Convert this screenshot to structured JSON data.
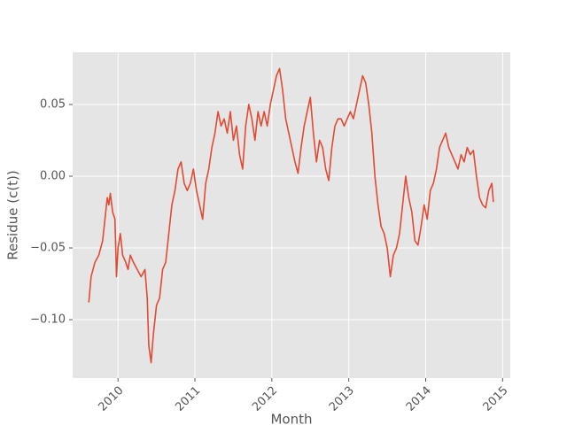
{
  "chart_data": {
    "type": "line",
    "xlabel": "Month",
    "ylabel": "Residue (c(t))",
    "color": "#e24a33",
    "grid": true,
    "xlim": [
      2009.41,
      2015.1
    ],
    "xticks": [
      2010,
      2011,
      2012,
      2013,
      2014,
      2015
    ],
    "ylim": [
      -0.1407,
      0.0864
    ],
    "yticks": [
      {
        "value": -0.1,
        "label": "−0.10"
      },
      {
        "value": -0.05,
        "label": "−0.05"
      },
      {
        "value": 0,
        "label": "0.00"
      },
      0.05
    ],
    "x": [
      2009.62,
      2009.65,
      2009.7,
      2009.75,
      2009.8,
      2009.83,
      2009.86,
      2009.88,
      2009.9,
      2009.93,
      2009.96,
      2009.98,
      2010.0,
      2010.03,
      2010.06,
      2010.1,
      2010.13,
      2010.16,
      2010.2,
      2010.25,
      2010.3,
      2010.35,
      2010.38,
      2010.4,
      2010.43,
      2010.46,
      2010.5,
      2010.54,
      2010.58,
      2010.62,
      2010.66,
      2010.7,
      2010.74,
      2010.78,
      2010.82,
      2010.86,
      2010.9,
      2010.94,
      2010.98,
      2011.02,
      2011.06,
      2011.1,
      2011.14,
      2011.18,
      2011.22,
      2011.26,
      2011.3,
      2011.34,
      2011.38,
      2011.42,
      2011.46,
      2011.5,
      2011.54,
      2011.58,
      2011.62,
      2011.66,
      2011.7,
      2011.74,
      2011.78,
      2011.82,
      2011.86,
      2011.9,
      2011.94,
      2011.98,
      2012.02,
      2012.06,
      2012.1,
      2012.14,
      2012.18,
      2012.22,
      2012.26,
      2012.3,
      2012.34,
      2012.38,
      2012.42,
      2012.46,
      2012.5,
      2012.54,
      2012.58,
      2012.62,
      2012.66,
      2012.7,
      2012.74,
      2012.78,
      2012.82,
      2012.86,
      2012.9,
      2012.94,
      2012.98,
      2013.02,
      2013.06,
      2013.1,
      2013.14,
      2013.18,
      2013.22,
      2013.26,
      2013.3,
      2013.34,
      2013.38,
      2013.42,
      2013.46,
      2013.5,
      2013.54,
      2013.58,
      2013.62,
      2013.66,
      2013.7,
      2013.74,
      2013.78,
      2013.82,
      2013.86,
      2013.9,
      2013.94,
      2013.98,
      2014.02,
      2014.06,
      2014.1,
      2014.14,
      2014.18,
      2014.22,
      2014.26,
      2014.3,
      2014.34,
      2014.38,
      2014.42,
      2014.46,
      2014.5,
      2014.54,
      2014.58,
      2014.62,
      2014.66,
      2014.7,
      2014.74,
      2014.78,
      2014.82,
      2014.86,
      2014.88
    ],
    "values": [
      -0.088,
      -0.07,
      -0.06,
      -0.055,
      -0.045,
      -0.03,
      -0.015,
      -0.02,
      -0.012,
      -0.025,
      -0.03,
      -0.07,
      -0.05,
      -0.04,
      -0.055,
      -0.06,
      -0.065,
      -0.055,
      -0.06,
      -0.065,
      -0.07,
      -0.065,
      -0.085,
      -0.118,
      -0.13,
      -0.11,
      -0.09,
      -0.085,
      -0.065,
      -0.06,
      -0.04,
      -0.02,
      -0.01,
      0.005,
      0.01,
      -0.005,
      -0.01,
      -0.005,
      0.005,
      -0.01,
      -0.02,
      -0.03,
      -0.005,
      0.005,
      0.02,
      0.03,
      0.045,
      0.035,
      0.04,
      0.03,
      0.045,
      0.025,
      0.035,
      0.015,
      0.005,
      0.035,
      0.05,
      0.04,
      0.025,
      0.045,
      0.035,
      0.045,
      0.035,
      0.05,
      0.06,
      0.07,
      0.075,
      0.06,
      0.04,
      0.03,
      0.02,
      0.01,
      0.002,
      0.02,
      0.035,
      0.045,
      0.055,
      0.03,
      0.01,
      0.025,
      0.02,
      0.005,
      -0.003,
      0.02,
      0.035,
      0.04,
      0.04,
      0.035,
      0.04,
      0.045,
      0.04,
      0.05,
      0.06,
      0.07,
      0.065,
      0.05,
      0.03,
      0.0,
      -0.02,
      -0.035,
      -0.04,
      -0.05,
      -0.07,
      -0.055,
      -0.05,
      -0.04,
      -0.02,
      0.0,
      -0.015,
      -0.025,
      -0.045,
      -0.048,
      -0.035,
      -0.02,
      -0.03,
      -0.01,
      -0.005,
      0.005,
      0.02,
      0.025,
      0.03,
      0.02,
      0.015,
      0.01,
      0.005,
      0.015,
      0.01,
      0.02,
      0.015,
      0.018,
      0.0,
      -0.015,
      -0.02,
      -0.022,
      -0.01,
      -0.005,
      -0.018
    ]
  }
}
